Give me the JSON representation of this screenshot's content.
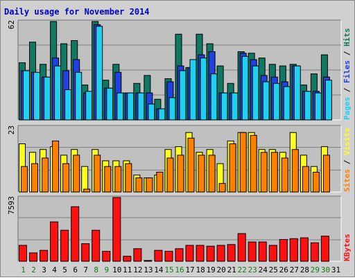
{
  "chart_data": {
    "type": "bar",
    "title": "Daily usage for November 2014",
    "categories": [
      "1",
      "2",
      "3",
      "4",
      "5",
      "6",
      "7",
      "8",
      "9",
      "10",
      "11",
      "12",
      "13",
      "14",
      "15",
      "16",
      "17",
      "18",
      "19",
      "20",
      "21",
      "22",
      "23",
      "24",
      "25",
      "26",
      "27",
      "28",
      "29",
      "30",
      "31"
    ],
    "weekend_days": [
      "1",
      "2",
      "8",
      "9",
      "15",
      "16",
      "22",
      "23",
      "29",
      "30"
    ],
    "colors": {
      "hits": "#107860",
      "files": "#2040e0",
      "pages": "#20d0f0",
      "visits": "#ffff20",
      "sites": "#ff8000",
      "kbytes": "#ff1010",
      "weekend_label": "#108010",
      "weekday_label": "#000000",
      "title": "#0000c0",
      "plot_bg": "#c0c0c0"
    },
    "panels": [
      {
        "id": "hits_files_pages",
        "ymax_label": "62",
        "ymax": 62,
        "legend": [
          {
            "text": "Pages",
            "color": "#20d0f0"
          },
          {
            "text": " / ",
            "color": "#000000"
          },
          {
            "text": "Files",
            "color": "#2040e0"
          },
          {
            "text": " / ",
            "color": "#000000"
          },
          {
            "text": "Hits",
            "color": "#107860"
          }
        ],
        "series": [
          {
            "name": "Hits",
            "values": [
              36,
              49,
              35,
              62,
              48,
              50,
              22,
              62,
              25,
              35,
              17,
              23,
              28,
              13,
              26,
              54,
              33,
              54,
              48,
              34,
              23,
              43,
              42,
              39,
              35,
              34,
              35,
              22,
              29,
              41,
              null
            ]
          },
          {
            "name": "Files",
            "values": [
              31,
              30,
              27,
              39,
              31,
              38,
              17,
              60,
              20,
              30,
              17,
              17,
              17,
              7,
              24,
              34,
              33,
              41,
              43,
              17,
              17,
              42,
              38,
              28,
              27,
              24,
              34,
              18,
              18,
              27,
              null
            ]
          },
          {
            "name": "Pages",
            "values": [
              31,
              30,
              27,
              34,
              19,
              30,
              18,
              59,
              20,
              17,
              17,
              17,
              10,
              7,
              14,
              31,
              38,
              39,
              29,
              17,
              17,
              40,
              34,
              24,
              23,
              21,
              34,
              18,
              17,
              25,
              null
            ]
          }
        ]
      },
      {
        "id": "visits_sites",
        "ymax_label": "23",
        "ymax": 23,
        "legend": [
          {
            "text": "Sites",
            "color": "#ff8000"
          },
          {
            "text": " / ",
            "color": "#000000"
          },
          {
            "text": "Visits",
            "color": "#ffff20"
          }
        ],
        "series": [
          {
            "name": "Visits",
            "values": [
              17,
              14,
              15,
              16,
              13,
              15,
              9,
              15,
              11,
              11,
              11,
              6,
              5,
              6,
              15,
              16,
              21,
              14,
              15,
              10,
              18,
              21,
              21,
              15,
              15,
              14,
              21,
              13,
              9,
              16,
              null
            ]
          },
          {
            "name": "Sites",
            "values": [
              9,
              10,
              12,
              18,
              10,
              13,
              1,
              13,
              9,
              9,
              10,
              5,
              5,
              7,
              12,
              13,
              19,
              13,
              13,
              3,
              17,
              21,
              20,
              14,
              14,
              12,
              15,
              9,
              7,
              13,
              null
            ]
          }
        ]
      },
      {
        "id": "kbytes",
        "ymax_label": "7593",
        "ymax": 7593,
        "legend": [
          {
            "text": "KBytes",
            "color": "#ff1010"
          }
        ],
        "series": [
          {
            "name": "KBytes",
            "values": [
              1900,
              1000,
              1300,
              4700,
              3700,
              6500,
              2100,
              3700,
              1200,
              7593,
              600,
              1500,
              100,
              1300,
              1200,
              1500,
              1900,
              1900,
              1800,
              1900,
              2000,
              3300,
              2300,
              2300,
              1900,
              2600,
              2700,
              2800,
              2200,
              3000,
              null
            ]
          }
        ]
      }
    ]
  }
}
